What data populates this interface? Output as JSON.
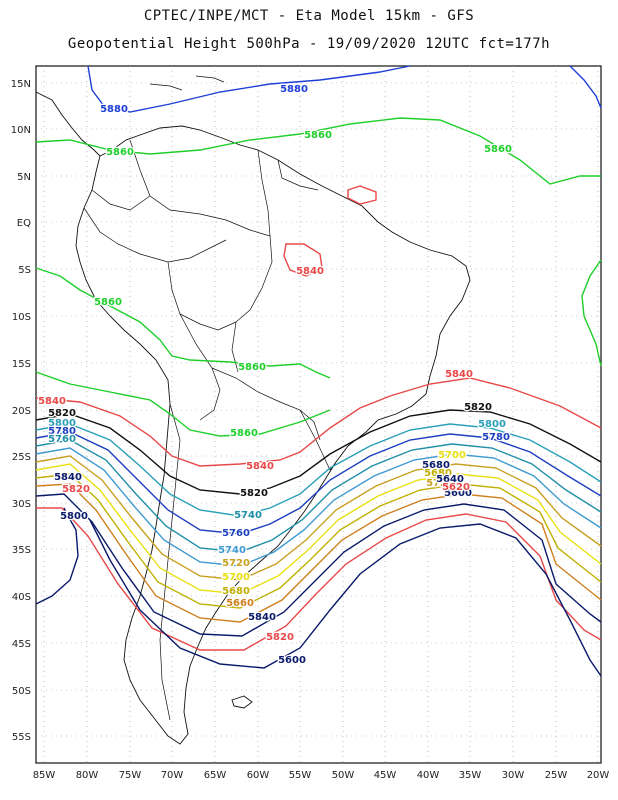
{
  "header": {
    "title_line1": "CPTEC/INPE/MCT  -  Eta Model 15km - GFS",
    "title_line2": "Geopotential Height 500hPa - 19/09/2020 12UTC fct=177h"
  },
  "axes": {
    "lat_labels": [
      "15N",
      "10N",
      "5N",
      "EQ",
      "5S",
      "10S",
      "15S",
      "20S",
      "25S",
      "30S",
      "35S",
      "40S",
      "45S",
      "50S",
      "55S"
    ],
    "lon_labels": [
      "85W",
      "80W",
      "75W",
      "70W",
      "65W",
      "60W",
      "55W",
      "50W",
      "45W",
      "40W",
      "35W",
      "30W",
      "25W",
      "20W"
    ]
  },
  "colors": {
    "c5880": "#1d3fd8",
    "c5860": "#1ecf2a",
    "c5840": "#e84848",
    "c5820": "#111111",
    "c5800": "#2aa0b8",
    "c5780": "#1c3fbf",
    "c5760": "#1f8fa8",
    "c5740": "#3e9ad0",
    "c5720": "#c8a020",
    "c5700": "#e8e010",
    "c5680": "#c0b000",
    "c5660": "#d08020",
    "c5600": "#0a1a6a",
    "coast": "#111111",
    "grid": "#9a9a9a"
  },
  "contour_labels": [
    {
      "text": "5880",
      "color": "c5880"
    },
    {
      "text": "5880",
      "color": "c5880"
    },
    {
      "text": "5860",
      "color": "c5860"
    },
    {
      "text": "5860",
      "color": "c5860"
    },
    {
      "text": "5860",
      "color": "c5860"
    },
    {
      "text": "5860",
      "color": "c5860"
    },
    {
      "text": "5860",
      "color": "c5860"
    },
    {
      "text": "5860",
      "color": "c5860"
    },
    {
      "text": "5840",
      "color": "c5840"
    },
    {
      "text": "5840",
      "color": "c5840"
    },
    {
      "text": "5840",
      "color": "c5840"
    },
    {
      "text": "5840",
      "color": "c5840"
    },
    {
      "text": "5820",
      "color": "c5820"
    },
    {
      "text": "5820",
      "color": "c5820"
    },
    {
      "text": "5820",
      "color": "c5820"
    },
    {
      "text": "5800",
      "color": "c5800"
    },
    {
      "text": "5800",
      "color": "c5800"
    },
    {
      "text": "5780",
      "color": "c5780"
    },
    {
      "text": "5780",
      "color": "c5780"
    },
    {
      "text": "5760",
      "color": "c5760"
    },
    {
      "text": "5740",
      "color": "c5740"
    },
    {
      "text": "5720",
      "color": "c5720"
    },
    {
      "text": "5700",
      "color": "c5700"
    },
    {
      "text": "5680",
      "color": "c5680"
    },
    {
      "text": "5660",
      "color": "c5660"
    },
    {
      "text": "5840",
      "color": "c5600"
    },
    {
      "text": "5840",
      "color": "c5600"
    },
    {
      "text": "5820",
      "color": "c5840"
    },
    {
      "text": "5820",
      "color": "c5840"
    },
    {
      "text": "5800",
      "color": "c5600"
    },
    {
      "text": "5600",
      "color": "c5600"
    },
    {
      "text": "5600",
      "color": "c5600"
    },
    {
      "text": "5680",
      "color": "c5600"
    },
    {
      "text": "5760",
      "color": "c5780"
    },
    {
      "text": "5740",
      "color": "c5760"
    },
    {
      "text": "5720",
      "color": "c5720"
    },
    {
      "text": "5680",
      "color": "c5680"
    },
    {
      "text": "5700",
      "color": "c5700"
    },
    {
      "text": "5640",
      "color": "c5600"
    },
    {
      "text": "5620",
      "color": "c5840"
    }
  ]
}
